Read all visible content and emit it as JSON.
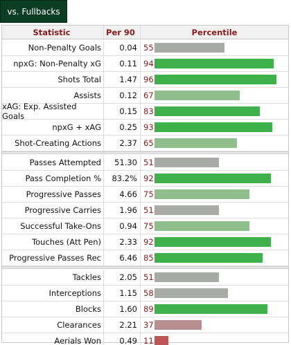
{
  "tab_label": "vs. Fullbacks",
  "headers": {
    "statistic": "Statistic",
    "per90": "Per 90",
    "percentile": "Percentile"
  },
  "colors": {
    "high": "#3fb14b",
    "mid": "#8fbf8c",
    "neutral": "#a8aaa8",
    "low": "#b88e8e",
    "very_low": "#bf5454",
    "header_text": "#8b1a1a",
    "tab_bg": "#0b3d23"
  },
  "groups": [
    [
      {
        "statistic": "Non-Penalty Goals",
        "per90": "0.04",
        "percentile": "55"
      },
      {
        "statistic": "npxG: Non-Penalty xG",
        "per90": "0.11",
        "percentile": "94"
      },
      {
        "statistic": "Shots Total",
        "per90": "1.47",
        "percentile": "96"
      },
      {
        "statistic": "Assists",
        "per90": "0.12",
        "percentile": "67"
      },
      {
        "statistic": "xAG: Exp. Assisted Goals",
        "per90": "0.15",
        "percentile": "83"
      },
      {
        "statistic": "npxG + xAG",
        "per90": "0.25",
        "percentile": "93"
      },
      {
        "statistic": "Shot-Creating Actions",
        "per90": "2.37",
        "percentile": "65"
      }
    ],
    [
      {
        "statistic": "Passes Attempted",
        "per90": "51.30",
        "percentile": "51"
      },
      {
        "statistic": "Pass Completion %",
        "per90": "83.2%",
        "percentile": "92"
      },
      {
        "statistic": "Progressive Passes",
        "per90": "4.66",
        "percentile": "75"
      },
      {
        "statistic": "Progressive Carries",
        "per90": "1.96",
        "percentile": "51"
      },
      {
        "statistic": "Successful Take-Ons",
        "per90": "0.94",
        "percentile": "75"
      },
      {
        "statistic": "Touches (Att Pen)",
        "per90": "2.33",
        "percentile": "92"
      },
      {
        "statistic": "Progressive Passes Rec",
        "per90": "6.46",
        "percentile": "85"
      }
    ],
    [
      {
        "statistic": "Tackles",
        "per90": "2.05",
        "percentile": "51"
      },
      {
        "statistic": "Interceptions",
        "per90": "1.15",
        "percentile": "58"
      },
      {
        "statistic": "Blocks",
        "per90": "1.60",
        "percentile": "89"
      },
      {
        "statistic": "Clearances",
        "per90": "2.21",
        "percentile": "37"
      },
      {
        "statistic": "Aerials Won",
        "per90": "0.49",
        "percentile": "11"
      }
    ]
  ]
}
